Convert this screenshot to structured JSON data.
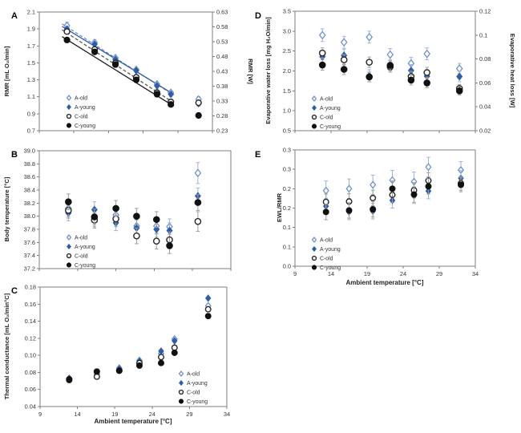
{
  "colors": {
    "blue": "#2e5ca6",
    "blue_light": "#6f93c8",
    "black": "#111111",
    "err_blue": "#9bb4d9",
    "err_gray": "#9e9e9e",
    "axis": "#7f7f7f",
    "text": "#333333"
  },
  "legend_items": [
    "A-old",
    "A-young",
    "C-old",
    "C-young"
  ],
  "chart_data": [
    {
      "panel": "A",
      "type": "scatter",
      "ylabel": "RMR [mL O₂/min]",
      "ylabel_right": "RMR [W]",
      "xlabel": null,
      "xlim": [
        9,
        34
      ],
      "xticks": {
        "values": [
          9,
          14,
          19,
          24,
          29,
          34
        ],
        "labels": [
          "9",
          "14",
          "19",
          "24",
          "29",
          "34"
        ],
        "show_labels": false
      },
      "ylim": [
        0.7,
        2.1
      ],
      "yticks": [
        0.7,
        0.9,
        1.1,
        1.3,
        1.5,
        1.7,
        1.9,
        2.1
      ],
      "ytick_labels": [
        "0.7",
        "0.9",
        "1.1",
        "1.3",
        "1.5",
        "1.7",
        "1.9",
        "2.1"
      ],
      "ylim_right": [
        0.23,
        0.63
      ],
      "yticks_right": [
        0.23,
        0.28,
        0.33,
        0.38,
        0.43,
        0.48,
        0.53,
        0.58,
        0.63
      ],
      "ytick_right_labels": [
        "0.23",
        "0.28",
        "0.33",
        "0.38",
        "0.43",
        "0.48",
        "0.53",
        "0.58",
        "0.63"
      ],
      "x": [
        13,
        17,
        20,
        23,
        26,
        28,
        32
      ],
      "series": [
        {
          "name": "A-old",
          "marker": "open-diamond",
          "values": [
            1.94,
            1.74,
            1.56,
            1.42,
            1.25,
            1.15,
            1.07
          ],
          "yerr": [
            0.04,
            0.03,
            0.02,
            0.02,
            0.02,
            0.02,
            0.03
          ]
        },
        {
          "name": "A-young",
          "marker": "filled-diamond",
          "values": [
            1.9,
            1.72,
            1.54,
            1.41,
            1.23,
            1.13,
            1.02
          ],
          "yerr": [
            0.03,
            0.04,
            0.03,
            0.03,
            0.03,
            0.03,
            0.03
          ]
        },
        {
          "name": "C-old",
          "marker": "open-circle",
          "values": [
            1.87,
            1.66,
            1.5,
            1.33,
            1.15,
            1.04,
            1.03
          ],
          "yerr": [
            0.03,
            0.02,
            0.02,
            0.02,
            0.02,
            0.02,
            0.02
          ]
        },
        {
          "name": "C-young",
          "marker": "filled-circle",
          "values": [
            1.77,
            1.63,
            1.48,
            1.3,
            1.13,
            1.01,
            0.88
          ],
          "yerr": [
            0.03,
            0.03,
            0.03,
            0.03,
            0.03,
            0.03,
            0.03
          ]
        }
      ],
      "trendlines": [
        {
          "style": "dashed",
          "color": "#7295cc",
          "x": [
            12.3,
            28.4
          ],
          "y": [
            1.96,
            1.12
          ]
        },
        {
          "style": "solid",
          "color": "#2e5ca6",
          "x": [
            12.3,
            28.4
          ],
          "y": [
            1.93,
            1.13
          ]
        },
        {
          "style": "dashed",
          "color": "#555555",
          "x": [
            12.3,
            28.4
          ],
          "y": [
            1.89,
            1.03
          ]
        },
        {
          "style": "solid",
          "color": "#1a1a1a",
          "x": [
            12.3,
            28.4
          ],
          "y": [
            1.81,
            0.99
          ]
        }
      ],
      "legend_pos": "bottom-left"
    },
    {
      "panel": "B",
      "type": "scatter",
      "ylabel": "Body temperature [°C]",
      "ylabel_right": null,
      "xlabel": null,
      "xlim": [
        9,
        34
      ],
      "xticks": {
        "values": [
          9,
          14,
          19,
          24,
          29,
          34
        ],
        "labels": [
          "9",
          "14",
          "19",
          "24",
          "29",
          "34"
        ],
        "show_labels": false
      },
      "ylim": [
        37.2,
        39.0
      ],
      "yticks": [
        37.2,
        37.4,
        37.6,
        37.8,
        38.0,
        38.2,
        38.4,
        38.6,
        38.8,
        39.0
      ],
      "ytick_labels": [
        "37.2",
        "37.4",
        "37.6",
        "37.8",
        "38.0",
        "38.2",
        "38.4",
        "38.6",
        "38.8",
        "39.0"
      ],
      "x": [
        12.8,
        16.2,
        19.0,
        21.7,
        24.3,
        26.0,
        29.7
      ],
      "series": [
        {
          "name": "A-old",
          "marker": "open-diamond",
          "values": [
            38.12,
            37.96,
            38.02,
            37.85,
            37.85,
            37.84,
            38.66
          ],
          "yerr": [
            0.13,
            0.12,
            0.12,
            0.12,
            0.12,
            0.12,
            0.16
          ]
        },
        {
          "name": "A-young",
          "marker": "filled-diamond",
          "values": [
            38.05,
            38.1,
            37.9,
            37.82,
            37.8,
            37.78,
            38.31
          ],
          "yerr": [
            0.12,
            0.12,
            0.12,
            0.12,
            0.12,
            0.12,
            0.12
          ]
        },
        {
          "name": "C-old",
          "marker": "open-circle",
          "values": [
            38.09,
            37.94,
            37.96,
            37.7,
            37.62,
            37.64,
            37.92
          ],
          "yerr": [
            0.12,
            0.12,
            0.12,
            0.12,
            0.12,
            0.12,
            0.15
          ]
        },
        {
          "name": "C-young",
          "marker": "filled-circle",
          "values": [
            38.22,
            37.99,
            38.12,
            38.0,
            37.95,
            37.55,
            38.21
          ],
          "yerr": [
            0.12,
            0.12,
            0.12,
            0.12,
            0.12,
            0.12,
            0.12
          ]
        }
      ],
      "trendlines": [],
      "legend_pos": "bottom-left"
    },
    {
      "panel": "C",
      "type": "scatter",
      "ylabel": "Thermal conductance [mL O₂/min°C]",
      "ylabel_right": null,
      "xlabel": "Ambient temperature [°C]",
      "xlim": [
        9,
        34
      ],
      "xticks": {
        "values": [
          9,
          14,
          19,
          24,
          29,
          34
        ],
        "labels": [
          "9",
          "14",
          "19",
          "24",
          "29",
          "34"
        ],
        "show_labels": true
      },
      "ylim": [
        0.04,
        0.18
      ],
      "yticks": [
        0.04,
        0.06,
        0.08,
        0.1,
        0.12,
        0.14,
        0.16,
        0.18
      ],
      "ytick_labels": [
        "0.04",
        "0.06",
        "0.08",
        "0.10",
        "0.12",
        "0.14",
        "0.16",
        "0.18"
      ],
      "x": [
        12.9,
        16.6,
        19.6,
        22.3,
        25.2,
        27.0,
        31.5
      ],
      "series": [
        {
          "name": "A-old",
          "marker": "open-diamond",
          "values": [
            0.073,
            0.078,
            0.085,
            0.094,
            0.102,
            0.119,
            0.158
          ],
          "yerr": 0
        },
        {
          "name": "A-young",
          "marker": "filled-diamond",
          "values": [
            0.073,
            0.08,
            0.084,
            0.093,
            0.105,
            0.117,
            0.167
          ],
          "yerr": 0
        },
        {
          "name": "C-old",
          "marker": "open-circle",
          "values": [
            0.071,
            0.075,
            0.082,
            0.091,
            0.098,
            0.109,
            0.154
          ],
          "yerr": 0
        },
        {
          "name": "C-young",
          "marker": "filled-circle",
          "values": [
            0.072,
            0.081,
            0.082,
            0.088,
            0.091,
            0.103,
            0.146
          ],
          "yerr": 0
        }
      ],
      "trendlines": [],
      "legend_pos": "bottom-right"
    },
    {
      "panel": "D",
      "type": "scatter",
      "ylabel": "Evaporative water loss [mg H₂O/min]",
      "ylabel_right": "Evaporative heat loss [W]",
      "xlabel": null,
      "xlim": [
        9,
        34
      ],
      "xticks": {
        "values": [
          9,
          14,
          19,
          24,
          29,
          34
        ],
        "labels": [
          "9",
          "14",
          "19",
          "24",
          "29",
          "34"
        ],
        "show_labels": false
      },
      "ylim": [
        0.5,
        3.5
      ],
      "yticks": [
        0.5,
        1.0,
        1.5,
        2.0,
        2.5,
        3.0,
        3.5
      ],
      "ytick_labels": [
        "0.5",
        "1.0",
        "1.5",
        "2.0",
        "2.5",
        "3.0",
        "3.5"
      ],
      "ylim_right": [
        0.02,
        0.12
      ],
      "yticks_right": [
        0.02,
        0.04,
        0.06,
        0.08,
        0.1,
        0.12
      ],
      "ytick_right_labels": [
        "0.02",
        "0.04",
        "0.06",
        "0.08",
        "0.1",
        "0.12"
      ],
      "x": [
        12.8,
        15.8,
        19.3,
        22.2,
        25.1,
        27.3,
        31.8
      ],
      "series": [
        {
          "name": "A-old",
          "marker": "open-diamond",
          "values": [
            2.9,
            2.72,
            2.85,
            2.41,
            2.19,
            2.43,
            2.06
          ],
          "yerr": [
            0.16,
            0.15,
            0.15,
            0.15,
            0.15,
            0.15,
            0.13
          ]
        },
        {
          "name": "A-young",
          "marker": "filled-diamond",
          "values": [
            2.36,
            2.39,
            1.88,
            2.12,
            2.01,
            1.87,
            1.86
          ],
          "yerr": [
            0.15,
            0.15,
            0.15,
            0.15,
            0.15,
            0.14,
            0.13
          ]
        },
        {
          "name": "C-old",
          "marker": "open-circle",
          "values": [
            2.45,
            2.28,
            2.22,
            2.1,
            1.86,
            1.96,
            1.56
          ],
          "yerr": [
            0.13,
            0.13,
            0.13,
            0.13,
            0.13,
            0.13,
            0.1
          ]
        },
        {
          "name": "C-young",
          "marker": "filled-circle",
          "values": [
            2.15,
            2.04,
            1.85,
            2.14,
            1.77,
            1.7,
            1.5
          ],
          "yerr": [
            0.13,
            0.13,
            0.12,
            0.13,
            0.12,
            0.12,
            0.1
          ]
        }
      ],
      "trendlines": [],
      "legend_pos": "bottom-left"
    },
    {
      "panel": "E",
      "type": "scatter",
      "ylabel": "EWL/RMR",
      "ylabel_right": null,
      "xlabel": "Ambient temperature [°C]",
      "xlim": [
        9,
        34
      ],
      "xticks": {
        "values": [
          9,
          14,
          19,
          24,
          29,
          34
        ],
        "labels": [
          "9",
          "14",
          "19",
          "24",
          "29",
          "34"
        ],
        "show_labels": true
      },
      "ylim": [
        0,
        0.3
      ],
      "yticks": [
        0,
        0.05,
        0.1,
        0.15,
        0.2,
        0.25,
        0.3
      ],
      "ytick_labels": [
        "0.0",
        "0.1",
        "0.1",
        "0.2",
        "0.2",
        "0.3",
        "0.3"
      ],
      "x": [
        13.3,
        16.5,
        19.8,
        22.5,
        25.5,
        27.5,
        32.0
      ],
      "series": [
        {
          "name": "A-old",
          "marker": "open-diamond",
          "values": [
            0.195,
            0.2,
            0.21,
            0.222,
            0.218,
            0.256,
            0.248
          ],
          "yerr": [
            0.025,
            0.025,
            0.025,
            0.025,
            0.025,
            0.025,
            0.022
          ]
        },
        {
          "name": "A-young",
          "marker": "filled-diamond",
          "values": [
            0.155,
            0.14,
            0.142,
            0.17,
            0.182,
            0.194,
            0.227
          ],
          "yerr": [
            0.02,
            0.02,
            0.02,
            0.02,
            0.02,
            0.02,
            0.02
          ]
        },
        {
          "name": "C-old",
          "marker": "open-circle",
          "values": [
            0.166,
            0.167,
            0.176,
            0.184,
            0.196,
            0.221,
            0.214
          ],
          "yerr": [
            0.02,
            0.02,
            0.02,
            0.02,
            0.02,
            0.02,
            0.018
          ]
        },
        {
          "name": "C-young",
          "marker": "filled-circle",
          "values": [
            0.14,
            0.144,
            0.147,
            0.2,
            0.185,
            0.206,
            0.21
          ],
          "yerr": [
            0.02,
            0.02,
            0.02,
            0.02,
            0.02,
            0.02,
            0.018
          ]
        }
      ],
      "trendlines": [],
      "legend_pos": "bottom-left"
    }
  ]
}
